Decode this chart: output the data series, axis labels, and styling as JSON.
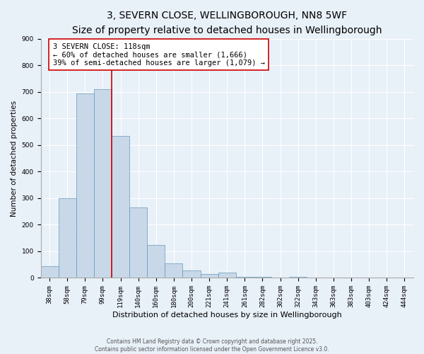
{
  "title": "3, SEVERN CLOSE, WELLINGBOROUGH, NN8 5WF",
  "subtitle": "Size of property relative to detached houses in Wellingborough",
  "xlabel": "Distribution of detached houses by size in Wellingborough",
  "ylabel": "Number of detached properties",
  "bin_labels": [
    "38sqm",
    "58sqm",
    "79sqm",
    "99sqm",
    "119sqm",
    "140sqm",
    "160sqm",
    "180sqm",
    "200sqm",
    "221sqm",
    "241sqm",
    "261sqm",
    "282sqm",
    "302sqm",
    "322sqm",
    "343sqm",
    "363sqm",
    "383sqm",
    "403sqm",
    "424sqm",
    "444sqm"
  ],
  "bar_heights": [
    45,
    300,
    695,
    710,
    535,
    265,
    125,
    55,
    28,
    15,
    20,
    5,
    3,
    1,
    5,
    1,
    0,
    0,
    0,
    1,
    0
  ],
  "bar_color": "#c8d8e8",
  "bar_edge_color": "#6699bb",
  "vline_index": 4,
  "property_line_label": "3 SEVERN CLOSE: 118sqm",
  "annotation_line1": "← 60% of detached houses are smaller (1,666)",
  "annotation_line2": "39% of semi-detached houses are larger (1,079) →",
  "annotation_box_color": "#ffffff",
  "annotation_box_edge_color": "#cc0000",
  "vline_color": "#cc0000",
  "ylim": [
    0,
    900
  ],
  "yticks": [
    0,
    100,
    200,
    300,
    400,
    500,
    600,
    700,
    800,
    900
  ],
  "background_color": "#e8f0f8",
  "plot_background_color": "#e8f0f8",
  "footer_line1": "Contains HM Land Registry data © Crown copyright and database right 2025.",
  "footer_line2": "Contains public sector information licensed under the Open Government Licence v3.0.",
  "title_fontsize": 10,
  "subtitle_fontsize": 8.5,
  "xlabel_fontsize": 8,
  "ylabel_fontsize": 7.5,
  "tick_fontsize": 6.5,
  "annotation_fontsize": 7.5,
  "footer_fontsize": 5.5
}
